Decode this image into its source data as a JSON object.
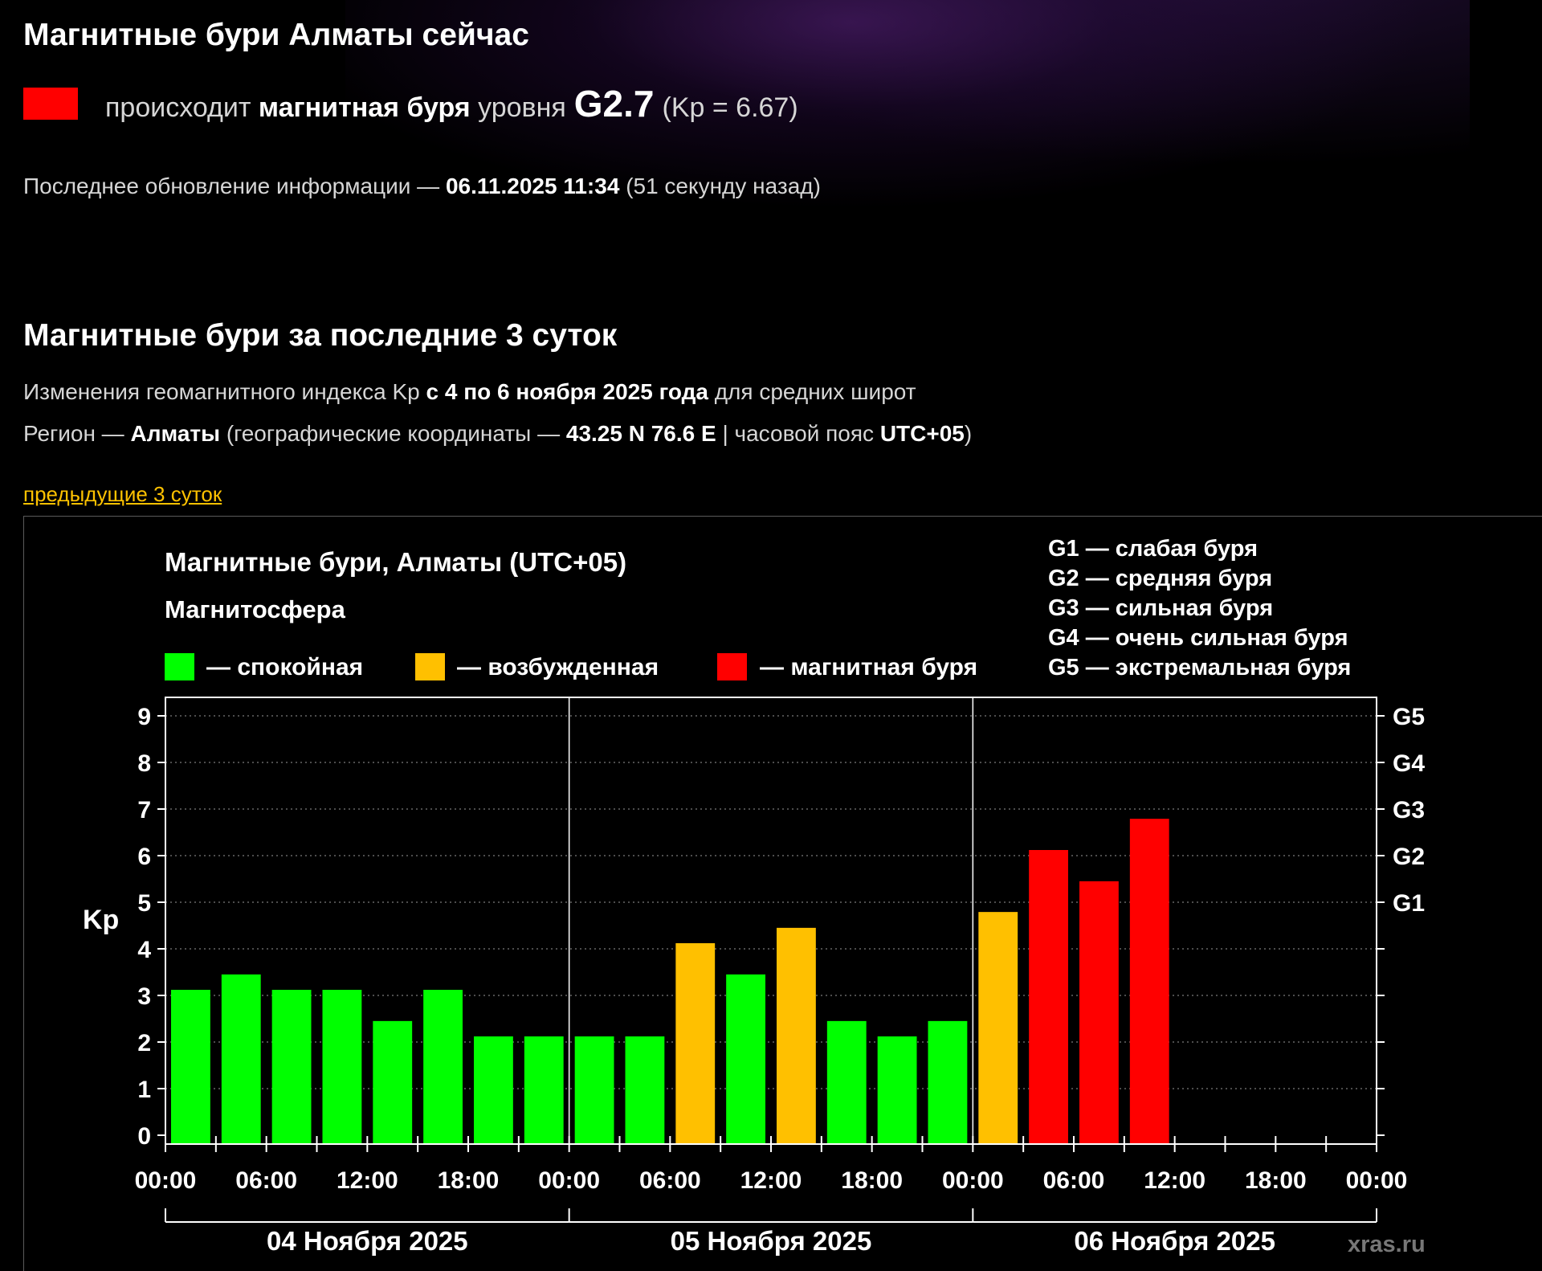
{
  "page": {
    "title_now": "Магнитные бури Алматы сейчас",
    "status": {
      "prefix": "происходит",
      "storm_word": "магнитная буря",
      "level_word": "уровня",
      "level": "G2.7",
      "kp_text": "(Kp = 6.67)",
      "swatch_color": "#ff0000"
    },
    "update": {
      "label": "Последнее обновление информации —",
      "datetime": "06.11.2025 11:34",
      "ago": "(51 секунду назад)"
    },
    "title_3days": "Магнитные бури за последние 3 суток",
    "info_line_1": {
      "text_a": "Изменения геомагнитного индекса Kp",
      "period": "с 4 по 6 ноября 2025 года",
      "text_b": "для средних широт"
    },
    "info_line_2": {
      "region_label": "Регион —",
      "region": "Алматы",
      "coords_label": "(географические координаты —",
      "coords": "43.25 N 76.6 E",
      "tz_label": "| часовой пояс",
      "tz": "UTC+05",
      "close": ")"
    },
    "prev_link": "предыдущие 3 суток"
  },
  "chart_data": {
    "type": "bar",
    "title": "Магнитные бури, Алматы (UTC+05)",
    "legend_title": "Магнитосфера",
    "legend": [
      {
        "label": "— спокойная",
        "color": "#00ff00"
      },
      {
        "label": "— возбужденная",
        "color": "#ffc000"
      },
      {
        "label": "— магнитная буря",
        "color": "#ff0000"
      }
    ],
    "g_scale": [
      "G1 — слабая буря",
      "G2 — средняя буря",
      "G3 — сильная буря",
      "G4 — очень сильная буря",
      "G5 — экстремальная буря"
    ],
    "ylabel": "Kp",
    "ylim": [
      0,
      9
    ],
    "yticks": [
      0,
      1,
      2,
      3,
      4,
      5,
      6,
      7,
      8,
      9
    ],
    "right_axis_labels": [
      {
        "label": "G1",
        "kp": 5
      },
      {
        "label": "G2",
        "kp": 6
      },
      {
        "label": "G3",
        "kp": 7
      },
      {
        "label": "G4",
        "kp": 8
      },
      {
        "label": "G5",
        "kp": 9
      }
    ],
    "x_tick_labels": [
      "00:00",
      "06:00",
      "12:00",
      "18:00",
      "00:00",
      "06:00",
      "12:00",
      "18:00",
      "00:00",
      "06:00",
      "12:00",
      "18:00",
      "00:00"
    ],
    "days": [
      "04 Ноября 2025",
      "05 Ноября 2025",
      "06 Ноября 2025"
    ],
    "watermark": "xras.ru",
    "interval_hours": 3,
    "values": [
      3.0,
      3.33,
      3.0,
      3.0,
      2.33,
      3.0,
      2.0,
      2.0,
      2.0,
      2.0,
      4.0,
      3.33,
      4.33,
      2.33,
      2.0,
      2.33,
      4.67,
      6.0,
      5.33,
      6.67
    ],
    "thresholds": {
      "excited_from": 4,
      "storm_from": 5
    },
    "gridlines": true
  }
}
